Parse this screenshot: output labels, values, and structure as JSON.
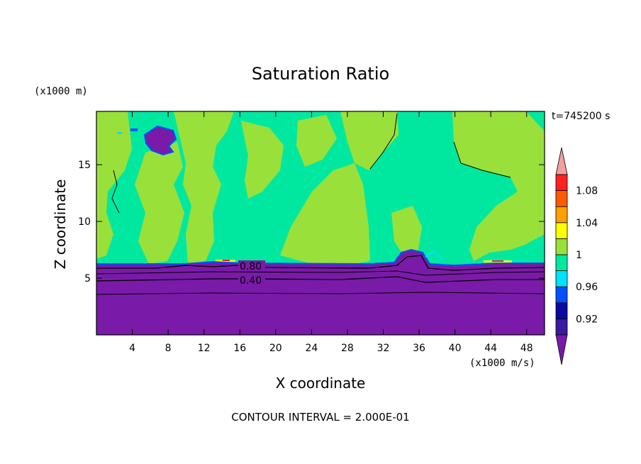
{
  "chart_data": {
    "type": "heatmap",
    "title": "Saturation Ratio",
    "xlabel": "X coordinate",
    "ylabel": "Z coordinate",
    "x_unit": "(x1000 m/s)",
    "y_unit": "(x1000 m)",
    "time_label": "t=745200 s",
    "footer": "CONTOUR INTERVAL = 2.000E-01",
    "xlim": [
      0,
      50
    ],
    "ylim": [
      0,
      19.7
    ],
    "x_ticks": [
      4,
      8,
      12,
      16,
      20,
      24,
      28,
      32,
      36,
      40,
      44,
      48
    ],
    "y_ticks": [
      5,
      10,
      15
    ],
    "contour_labels": [
      {
        "text": "0.80",
        "x": 16.3,
        "y": 6.2
      },
      {
        "text": "0.40",
        "x": 16.3,
        "y": 4.9
      }
    ],
    "contour_interval": 0.2,
    "colorbar": {
      "levels": [
        "1.08",
        "1.04",
        "1",
        "0.96",
        "0.92"
      ],
      "bands": [
        {
          "range": "<0.90",
          "color": "#7a1aa8"
        },
        {
          "range": "0.90-0.92",
          "color": "#3a1aa0"
        },
        {
          "range": "0.92-0.94",
          "color": "#0a0a9e"
        },
        {
          "range": "0.94-0.96",
          "color": "#0050ff"
        },
        {
          "range": "0.96-0.98",
          "color": "#00e0ff"
        },
        {
          "range": "0.98-1.00",
          "color": "#00e8a0"
        },
        {
          "range": "1.00-1.02",
          "color": "#99e03a"
        },
        {
          "range": "1.02-1.04",
          "color": "#ffff00"
        },
        {
          "range": "1.04-1.06",
          "color": "#ffa000"
        },
        {
          "range": "1.06-1.08",
          "color": "#ff5a00"
        },
        {
          "range": "1.08-1.10",
          "color": "#ff2020"
        },
        {
          "range": ">1.10",
          "color": "#f0a0a0"
        }
      ]
    },
    "regions": {
      "stable_layer_top_z": 6.4,
      "stable_layer_value": "<0.90",
      "upper_field": "alternating 0.98-1.00 and 1.00-1.02",
      "cloud_bump_x": 36
    }
  }
}
